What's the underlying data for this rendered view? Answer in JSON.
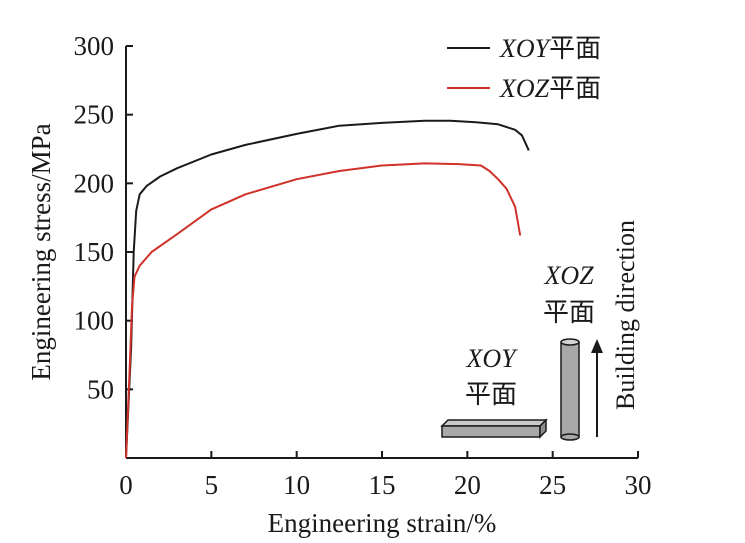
{
  "chart_data": {
    "type": "line",
    "xlabel": "Engineering strain/%",
    "ylabel": "Engineering stress/MPa",
    "xlim": [
      0,
      30
    ],
    "ylim": [
      0,
      300
    ],
    "x_ticks": [
      "0",
      "5",
      "10",
      "15",
      "20",
      "25",
      "30"
    ],
    "y_ticks": [
      "50",
      "100",
      "150",
      "200",
      "250",
      "300"
    ],
    "grid": false,
    "legend_position": "top-right",
    "series": [
      {
        "name_italic": "XOY",
        "name_suffix": "平面",
        "color": "#1a1a1a",
        "points": [
          [
            0,
            0
          ],
          [
            0.3,
            80
          ],
          [
            0.45,
            150
          ],
          [
            0.6,
            180
          ],
          [
            0.8,
            192
          ],
          [
            1.2,
            198
          ],
          [
            2,
            205
          ],
          [
            3,
            211
          ],
          [
            5,
            221
          ],
          [
            7,
            228
          ],
          [
            10,
            236
          ],
          [
            12.5,
            242
          ],
          [
            15,
            244
          ],
          [
            17.5,
            245.5
          ],
          [
            19,
            245.5
          ],
          [
            20.5,
            244.5
          ],
          [
            21.8,
            243
          ],
          [
            22.8,
            239
          ],
          [
            23.2,
            235
          ],
          [
            23.6,
            224
          ]
        ]
      },
      {
        "name_italic": "XOZ",
        "name_suffix": "平面",
        "color": "#d0322a",
        "points": [
          [
            0,
            0
          ],
          [
            0.2,
            60
          ],
          [
            0.35,
            110
          ],
          [
            0.5,
            132
          ],
          [
            0.8,
            140
          ],
          [
            1.5,
            150
          ],
          [
            3,
            163
          ],
          [
            5,
            181
          ],
          [
            7,
            192
          ],
          [
            10,
            203
          ],
          [
            12.5,
            209
          ],
          [
            15,
            213
          ],
          [
            17.5,
            214.5
          ],
          [
            19.5,
            214
          ],
          [
            20.8,
            213
          ],
          [
            21.3,
            209
          ],
          [
            21.8,
            203
          ],
          [
            22.3,
            196
          ],
          [
            22.8,
            183
          ],
          [
            23.1,
            162
          ]
        ]
      }
    ],
    "annotations": {
      "xoy_label_italic": "XOY",
      "xoy_label_suffix": "平面",
      "xoz_label_italic": "XOZ",
      "xoz_label_suffix": "平面",
      "build_direction": "Building direction"
    }
  }
}
